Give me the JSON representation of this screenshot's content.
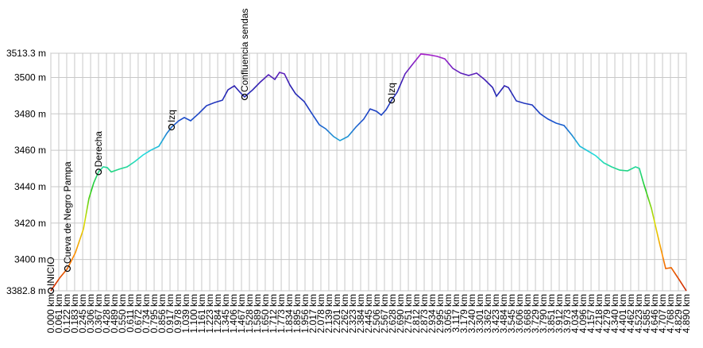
{
  "chart_data": {
    "type": "line",
    "x": [
      0,
      0.067,
      0.128,
      0.189,
      0.251,
      0.293,
      0.33,
      0.367,
      0.403,
      0.434,
      0.465,
      0.526,
      0.587,
      0.648,
      0.709,
      0.77,
      0.831,
      0.892,
      0.929,
      0.984,
      1.027,
      1.076,
      1.137,
      1.198,
      1.259,
      1.32,
      1.363,
      1.412,
      1.455,
      1.491,
      1.553,
      1.614,
      1.675,
      1.724,
      1.76,
      1.797,
      1.84,
      1.883,
      1.95,
      2.005,
      2.066,
      2.115,
      2.176,
      2.225,
      2.286,
      2.347,
      2.408,
      2.457,
      2.506,
      2.543,
      2.58,
      2.622,
      2.665,
      2.726,
      2.787,
      2.848,
      2.91,
      2.971,
      3.032,
      3.093,
      3.154,
      3.215,
      3.276,
      3.337,
      3.399,
      3.429,
      3.49,
      3.521,
      3.582,
      3.643,
      3.704,
      3.765,
      3.826,
      3.888,
      3.949,
      4.01,
      4.071,
      4.132,
      4.193,
      4.254,
      4.315,
      4.377,
      4.438,
      4.499,
      4.529,
      4.56,
      4.621,
      4.682,
      4.731,
      4.774,
      4.835,
      4.89
    ],
    "values": [
      3382.8,
      3389.8,
      3395.0,
      3403.7,
      3416.8,
      3433.4,
      3442.1,
      3448.1,
      3450.9,
      3450.5,
      3448.1,
      3449.6,
      3450.9,
      3453.9,
      3457.4,
      3460.1,
      3462.2,
      3469.2,
      3472.7,
      3476.2,
      3478.0,
      3476.2,
      3480.1,
      3484.5,
      3486.2,
      3487.5,
      3493.2,
      3495.4,
      3491.9,
      3489.3,
      3493.2,
      3497.6,
      3501.5,
      3498.9,
      3502.8,
      3502.0,
      3495.8,
      3491.0,
      3486.7,
      3480.6,
      3474.0,
      3471.8,
      3467.5,
      3465.3,
      3467.5,
      3472.7,
      3477.1,
      3482.7,
      3481.4,
      3479.3,
      3482.3,
      3487.5,
      3491.9,
      3502.0,
      3507.6,
      3512.9,
      3512.4,
      3511.6,
      3510.2,
      3505.0,
      3502.4,
      3501.1,
      3502.4,
      3498.9,
      3494.5,
      3489.7,
      3495.4,
      3494.5,
      3487.1,
      3485.8,
      3484.9,
      3480.1,
      3477.1,
      3474.9,
      3473.6,
      3468.3,
      3462.2,
      3459.6,
      3457.0,
      3453.1,
      3450.9,
      3449.1,
      3448.7,
      3450.9,
      3450.0,
      3442.1,
      3428.2,
      3409.4,
      3395.0,
      3395.5,
      3388.9,
      3382.8
    ],
    "color_scale": [
      "#cc2200",
      "#ff8800",
      "#dddd00",
      "#22cc22",
      "#22dddd",
      "#1a50cc",
      "#2a20b0",
      "#aa22cc"
    ],
    "xlim": [
      0,
      4.89
    ],
    "ylim": [
      3382.8,
      3513.3
    ],
    "grid": true,
    "yticks": [
      {
        "value": 3382.8,
        "label": "3382.8 m"
      },
      {
        "value": 3400,
        "label": "3400 m"
      },
      {
        "value": 3420,
        "label": "3420 m"
      },
      {
        "value": 3440,
        "label": "3440 m"
      },
      {
        "value": 3460,
        "label": "3460 m"
      },
      {
        "value": 3480,
        "label": "3480 m"
      },
      {
        "value": 3500,
        "label": "3500 m"
      },
      {
        "value": 3513.3,
        "label": "3513.3 m"
      }
    ],
    "xticks": [
      {
        "value": 0.0,
        "label": "0.000 km"
      },
      {
        "value": 0.061,
        "label": "0.061 km"
      },
      {
        "value": 0.122,
        "label": "0.122 km"
      },
      {
        "value": 0.183,
        "label": "0.183 km"
      },
      {
        "value": 0.245,
        "label": "0.245 km"
      },
      {
        "value": 0.306,
        "label": "0.306 km"
      },
      {
        "value": 0.367,
        "label": "0.367 km"
      },
      {
        "value": 0.428,
        "label": "0.428 km"
      },
      {
        "value": 0.489,
        "label": "0.489 km"
      },
      {
        "value": 0.55,
        "label": "0.550 km"
      },
      {
        "value": 0.611,
        "label": "0.611 km"
      },
      {
        "value": 0.672,
        "label": "0.672 km"
      },
      {
        "value": 0.734,
        "label": "0.734 km"
      },
      {
        "value": 0.795,
        "label": "0.795 km"
      },
      {
        "value": 0.856,
        "label": "0.856 km"
      },
      {
        "value": 0.917,
        "label": "0.917 km"
      },
      {
        "value": 0.978,
        "label": "0.978 km"
      },
      {
        "value": 1.039,
        "label": "1.039 km"
      },
      {
        "value": 1.1,
        "label": "1.100 km"
      },
      {
        "value": 1.161,
        "label": "1.161 km"
      },
      {
        "value": 1.223,
        "label": "1.223 km"
      },
      {
        "value": 1.284,
        "label": "1.284 km"
      },
      {
        "value": 1.345,
        "label": "1.345 km"
      },
      {
        "value": 1.406,
        "label": "1.406 km"
      },
      {
        "value": 1.467,
        "label": "1.467 km"
      },
      {
        "value": 1.528,
        "label": "1.528 km"
      },
      {
        "value": 1.589,
        "label": "1.589 km"
      },
      {
        "value": 1.65,
        "label": "1.650 km"
      },
      {
        "value": 1.712,
        "label": "1.712 km"
      },
      {
        "value": 1.773,
        "label": "1.773 km"
      },
      {
        "value": 1.834,
        "label": "1.834 km"
      },
      {
        "value": 1.895,
        "label": "1.895 km"
      },
      {
        "value": 1.956,
        "label": "1.956 km"
      },
      {
        "value": 2.017,
        "label": "2.017 km"
      },
      {
        "value": 2.078,
        "label": "2.078 km"
      },
      {
        "value": 2.139,
        "label": "2.139 km"
      },
      {
        "value": 2.201,
        "label": "2.201 km"
      },
      {
        "value": 2.262,
        "label": "2.262 km"
      },
      {
        "value": 2.323,
        "label": "2.323 km"
      },
      {
        "value": 2.384,
        "label": "2.384 km"
      },
      {
        "value": 2.445,
        "label": "2.445 km"
      },
      {
        "value": 2.506,
        "label": "2.506 km"
      },
      {
        "value": 2.567,
        "label": "2.567 km"
      },
      {
        "value": 2.628,
        "label": "2.628 km"
      },
      {
        "value": 2.69,
        "label": "2.690 km"
      },
      {
        "value": 2.751,
        "label": "2.751 km"
      },
      {
        "value": 2.812,
        "label": "2.812 km"
      },
      {
        "value": 2.873,
        "label": "2.873 km"
      },
      {
        "value": 2.934,
        "label": "2.934 km"
      },
      {
        "value": 2.995,
        "label": "2.995 km"
      },
      {
        "value": 3.056,
        "label": "3.056 km"
      },
      {
        "value": 3.117,
        "label": "3.117 km"
      },
      {
        "value": 3.179,
        "label": "3.179 km"
      },
      {
        "value": 3.24,
        "label": "3.240 km"
      },
      {
        "value": 3.301,
        "label": "3.301 km"
      },
      {
        "value": 3.362,
        "label": "3.362 km"
      },
      {
        "value": 3.423,
        "label": "3.423 km"
      },
      {
        "value": 3.484,
        "label": "3.484 km"
      },
      {
        "value": 3.545,
        "label": "3.545 km"
      },
      {
        "value": 3.606,
        "label": "3.606 km"
      },
      {
        "value": 3.668,
        "label": "3.668 km"
      },
      {
        "value": 3.729,
        "label": "3.729 km"
      },
      {
        "value": 3.79,
        "label": "3.790 km"
      },
      {
        "value": 3.851,
        "label": "3.851 km"
      },
      {
        "value": 3.912,
        "label": "3.912 km"
      },
      {
        "value": 3.973,
        "label": "3.973 km"
      },
      {
        "value": 4.034,
        "label": "4.034 km"
      },
      {
        "value": 4.096,
        "label": "4.096 km"
      },
      {
        "value": 4.157,
        "label": "4.157 km"
      },
      {
        "value": 4.218,
        "label": "4.218 km"
      },
      {
        "value": 4.279,
        "label": "4.279 km"
      },
      {
        "value": 4.34,
        "label": "4.340 km"
      },
      {
        "value": 4.401,
        "label": "4.401 km"
      },
      {
        "value": 4.462,
        "label": "4.462 km"
      },
      {
        "value": 4.523,
        "label": "4.523 km"
      },
      {
        "value": 4.585,
        "label": "4.585 km"
      },
      {
        "value": 4.646,
        "label": "4.646 km"
      },
      {
        "value": 4.707,
        "label": "4.707 km"
      },
      {
        "value": 4.768,
        "label": "4.768 km"
      },
      {
        "value": 4.829,
        "label": "4.829 km"
      },
      {
        "value": 4.89,
        "label": "4.890 km"
      }
    ],
    "annotations": [
      {
        "label": "INICIO",
        "x": 0,
        "y": 3382.8
      },
      {
        "label": "Cueva de Negro Pampa",
        "x": 0.128,
        "y": 3395.0
      },
      {
        "label": "Derecha",
        "x": 0.367,
        "y": 3448.1
      },
      {
        "label": "Izq",
        "x": 0.929,
        "y": 3472.7
      },
      {
        "label": "Confluencia sendas",
        "x": 1.491,
        "y": 3489.3
      },
      {
        "label": "Izq",
        "x": 2.622,
        "y": 3487.5
      }
    ]
  }
}
